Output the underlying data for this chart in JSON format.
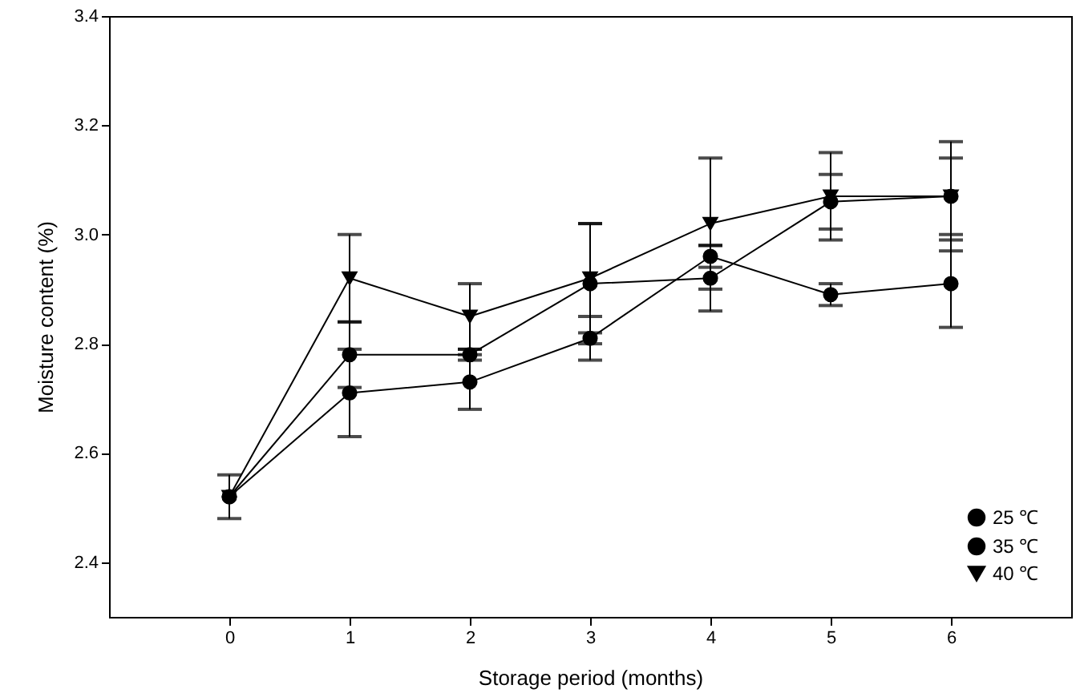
{
  "chart_data": {
    "type": "line",
    "xlabel": "Storage period (months)",
    "ylabel": "Moisture content (%)",
    "x": [
      0,
      1,
      2,
      3,
      4,
      5,
      6
    ],
    "series": [
      {
        "name": "25 ℃",
        "color": "#000000",
        "marker": "circle",
        "values": [
          2.52,
          2.71,
          2.73,
          2.81,
          2.96,
          2.89,
          2.91
        ],
        "errors": [
          0.04,
          0.08,
          0.05,
          0.04,
          0.02,
          0.02,
          0.08
        ]
      },
      {
        "name": "35 ℃",
        "color": "#000000",
        "marker": "circle",
        "values": [
          2.52,
          2.78,
          2.78,
          2.91,
          2.92,
          3.06,
          3.07
        ],
        "errors": [
          null,
          0.06,
          0.01,
          0.11,
          0.06,
          0.05,
          0.07
        ]
      },
      {
        "name": "40 ℃",
        "color": "#000000",
        "marker": "triangle",
        "values": [
          2.52,
          2.92,
          2.85,
          2.92,
          3.02,
          3.07,
          3.07
        ],
        "errors": [
          null,
          0.08,
          0.06,
          0.1,
          0.12,
          0.08,
          0.1
        ]
      }
    ],
    "xlim": [
      -1,
      7
    ],
    "xticks": [
      0,
      1,
      2,
      3,
      4,
      5,
      6
    ],
    "ylim": [
      2.3,
      3.4
    ],
    "yticks": [
      2.4,
      2.6,
      2.8,
      {
        "value": 3,
        "label": "3.0"
      },
      3.2,
      3.4
    ],
    "legend": "bottom right",
    "grid": false,
    "line_style": "solid"
  }
}
